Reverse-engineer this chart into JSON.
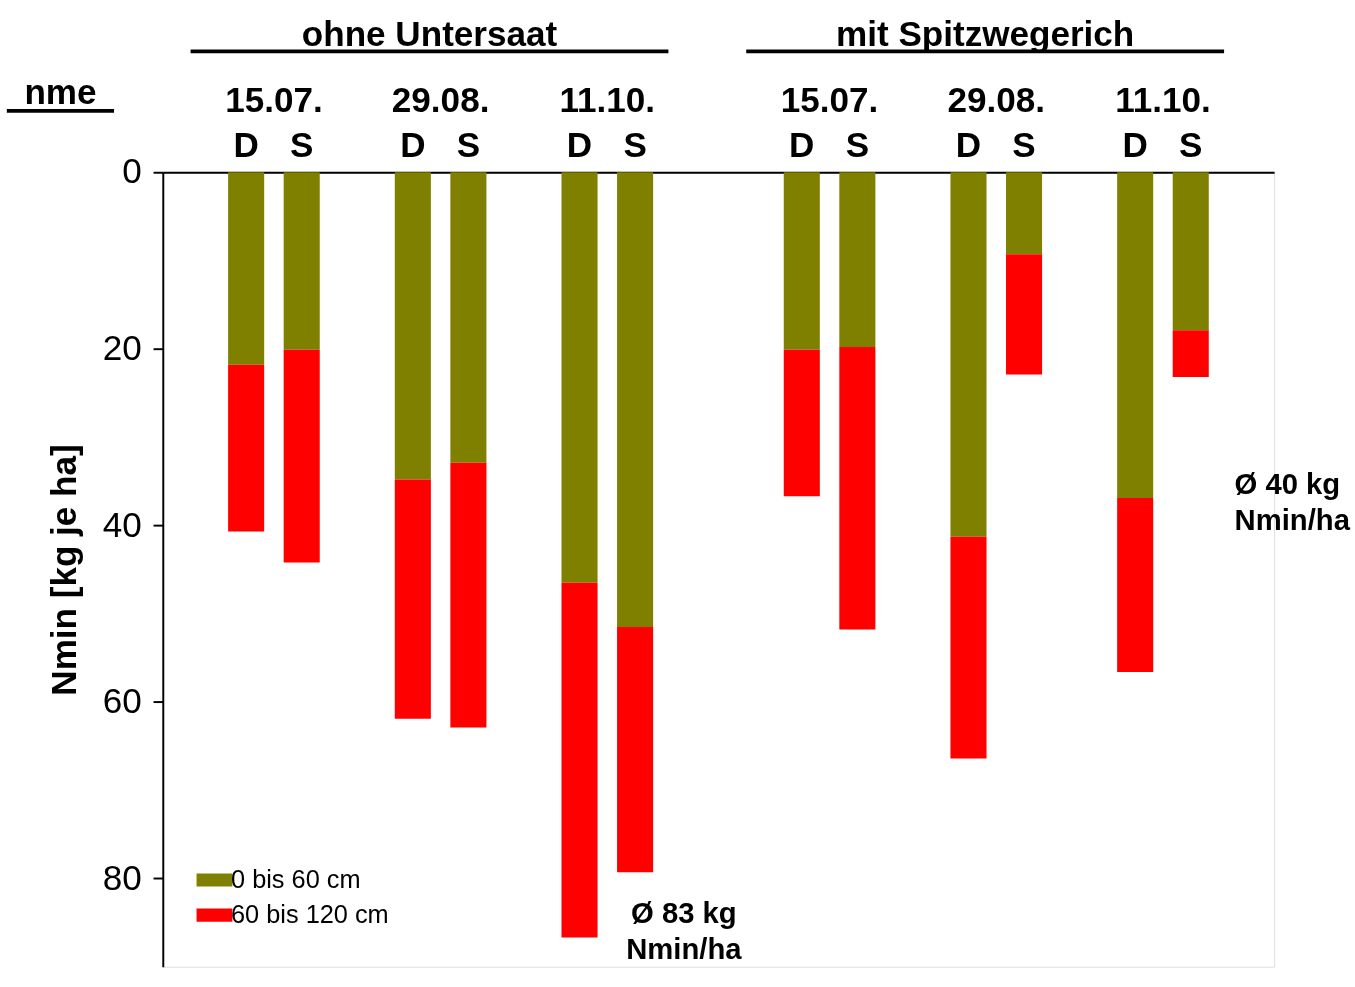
{
  "chart_data": {
    "type": "bar",
    "stacked": true,
    "ylabel": "Nmin [kg je ha]",
    "categories": [
      "D",
      "S",
      "D",
      "S",
      "D",
      "S",
      "D",
      "S",
      "D",
      "S",
      "D",
      "S"
    ],
    "series": [
      {
        "name": "0 bis 60 cm",
        "color": "#808000",
        "values": [
          21.8,
          20.1,
          34.8,
          32.9,
          46.5,
          51.5,
          20.1,
          19.8,
          41.3,
          9.3,
          36.9,
          17.9
        ]
      },
      {
        "name": "60 bis 120 cm",
        "color": "#ff0000",
        "values": [
          18.9,
          24.1,
          27.1,
          30.0,
          40.2,
          27.8,
          16.6,
          32.0,
          25.1,
          13.6,
          19.7,
          5.3
        ]
      }
    ],
    "ylim": [
      90,
      0
    ],
    "yticks": [
      0,
      20,
      40,
      60,
      80
    ],
    "legend": "bottom left",
    "annotations": [
      "15.07.",
      "29.08.",
      "11.10.",
      "15.07.",
      "29.08.",
      "11.10.",
      "ohne Untersaat",
      "mit Spitzwegerich",
      "nme",
      "Ø 83 kg\nNmin/ha",
      "Ø 40 kg\nNmin/ha"
    ]
  }
}
